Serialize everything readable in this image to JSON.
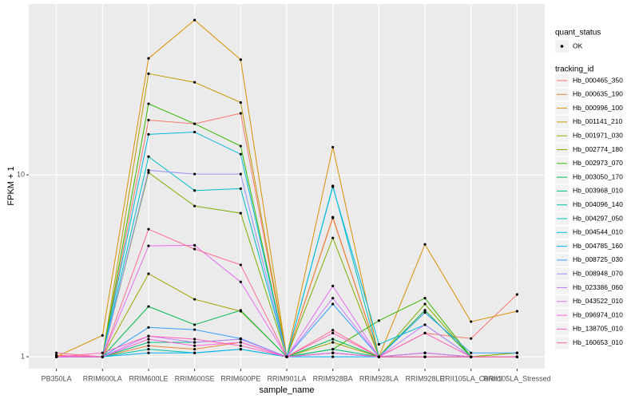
{
  "chart_data": {
    "type": "line",
    "x_label": "sample_name",
    "y_label": "FPKM + 1",
    "log_y": true,
    "grid": true,
    "ylim": [
      0.86,
      87
    ],
    "yticks": [
      1,
      10
    ],
    "categories": [
      "PB350LA",
      "RRIM600LA",
      "RRIM600LE",
      "RRIM600SE",
      "RRIM600PE",
      "RRIM901LA",
      "RRIM928BA",
      "RRIM928LA",
      "RRIM928LE",
      "RRII105LA_Control",
      "RRII105LA_Stressed"
    ],
    "point_legend_title": "quant_status",
    "point_legend_label": "OK",
    "point_color": "#000000",
    "legend_title": "tracking_id",
    "series": [
      {
        "name": "Hb_000465_350",
        "color": "#F8766D",
        "values": [
          1.02,
          1.0,
          20,
          19.1,
          21.8,
          1.0,
          5.86,
          1.0,
          1.35,
          1.26,
          2.2
        ]
      },
      {
        "name": "Hb_000635_190",
        "color": "#EA8331",
        "values": [
          1.0,
          1.0,
          1.15,
          1.1,
          1.2,
          1.0,
          5.8,
          1.0,
          1.8,
          1.0,
          1.0
        ]
      },
      {
        "name": "Hb_000996_100",
        "color": "#D89000",
        "values": [
          1.0,
          1.31,
          43.7,
          71,
          43,
          1.0,
          14.2,
          1.0,
          4.15,
          1.56,
          1.78
        ]
      },
      {
        "name": "Hb_001141_210",
        "color": "#C09B00",
        "values": [
          1.0,
          1.0,
          36,
          32.3,
          25,
          1.0,
          1.05,
          1.0,
          1.05,
          1.0,
          1.0
        ]
      },
      {
        "name": "Hb_001971_030",
        "color": "#A3A500",
        "values": [
          1.0,
          1.0,
          2.86,
          2.07,
          1.78,
          1.0,
          1.2,
          1.0,
          1.0,
          1.0,
          1.05
        ]
      },
      {
        "name": "Hb_002774_180",
        "color": "#7CAE00",
        "values": [
          1.0,
          1.0,
          10.3,
          6.74,
          6.16,
          1.0,
          4.5,
          1.0,
          1.95,
          1.0,
          1.05
        ]
      },
      {
        "name": "Hb_002973_070",
        "color": "#39B600",
        "values": [
          1.0,
          1.0,
          24.6,
          19.1,
          14.4,
          1.0,
          1.1,
          1.58,
          2.1,
          1.0,
          1.0
        ]
      },
      {
        "name": "Hb_003050_170",
        "color": "#00BB4E",
        "values": [
          1.0,
          1.0,
          1.89,
          1.5,
          1.8,
          1.0,
          1.25,
          1.0,
          1.8,
          1.0,
          1.0
        ]
      },
      {
        "name": "Hb_003968_010",
        "color": "#00BF7D",
        "values": [
          1.0,
          1.0,
          1.2,
          1.2,
          1.25,
          1.0,
          1.1,
          1.0,
          1.0,
          1.0,
          1.0
        ]
      },
      {
        "name": "Hb_004096_140",
        "color": "#00C1A3",
        "values": [
          1.0,
          1.0,
          1.1,
          1.05,
          1.1,
          1.0,
          1.05,
          1.0,
          1.0,
          1.0,
          1.0
        ]
      },
      {
        "name": "Hb_004297_050",
        "color": "#00BFC4",
        "values": [
          1.0,
          1.0,
          12.6,
          8.2,
          8.4,
          1.0,
          8.7,
          1.0,
          1.05,
          1.0,
          1.0
        ]
      },
      {
        "name": "Hb_004544_010",
        "color": "#00BAE0",
        "values": [
          1.0,
          1.0,
          16.7,
          17.2,
          13,
          1.0,
          8.6,
          1.17,
          1.5,
          1.0,
          1.0
        ]
      },
      {
        "name": "Hb_004785_160",
        "color": "#00B0F6",
        "values": [
          1.0,
          1.0,
          1.05,
          1.05,
          1.1,
          1.0,
          1.0,
          1.0,
          1.0,
          1.0,
          1.0
        ]
      },
      {
        "name": "Hb_008725_030",
        "color": "#35A2FF",
        "values": [
          1.0,
          1.0,
          1.45,
          1.41,
          1.26,
          1.0,
          1.95,
          1.0,
          1.75,
          1.05,
          1.05
        ]
      },
      {
        "name": "Hb_008948_070",
        "color": "#9590FF",
        "values": [
          1.0,
          1.0,
          10.6,
          10.1,
          10.1,
          1.0,
          1.05,
          1.0,
          1.0,
          1.0,
          1.0
        ]
      },
      {
        "name": "Hb_023386_060",
        "color": "#C77CFF",
        "values": [
          1.0,
          1.0,
          1.3,
          1.2,
          1.25,
          1.0,
          2.1,
          1.0,
          1.5,
          1.0,
          1.0
        ]
      },
      {
        "name": "Hb_043522_010",
        "color": "#E76BF3",
        "values": [
          1.0,
          1.0,
          4.07,
          4.1,
          2.58,
          1.0,
          2.45,
          1.0,
          1.05,
          1.0,
          1.0
        ]
      },
      {
        "name": "Hb_096974_010",
        "color": "#FA62DB",
        "values": [
          1.0,
          1.0,
          1.25,
          1.15,
          1.2,
          1.0,
          1.05,
          1.0,
          1.0,
          1.0,
          1.0
        ]
      },
      {
        "name": "Hb_138705_010",
        "color": "#FF62BC",
        "values": [
          1.0,
          1.05,
          1.3,
          1.25,
          1.15,
          1.0,
          1.35,
          1.0,
          1.35,
          1.0,
          1.0
        ]
      },
      {
        "name": "Hb_160653_010",
        "color": "#FF6C91",
        "values": [
          1.05,
          1.0,
          5.03,
          3.91,
          3.2,
          1.0,
          1.4,
          1.0,
          1.0,
          1.0,
          1.0
        ]
      }
    ]
  }
}
